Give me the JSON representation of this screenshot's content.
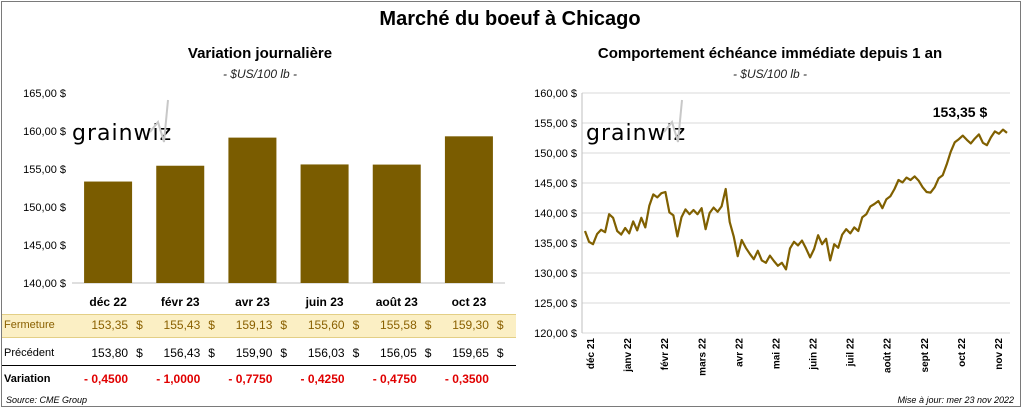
{
  "title": "Marché du boeuf à Chicago",
  "left_panel": {
    "title": "Variation  journalière",
    "subtitle": "- $US/100 lb -",
    "watermark": "grainwiz",
    "table": {
      "currency": "$",
      "rows": [
        {
          "label": "Fermeture",
          "values": [
            "153,35",
            "155,43",
            "159,13",
            "155,60",
            "155,58",
            "159,30"
          ],
          "show_currency": true
        },
        {
          "label": "Précédent",
          "values": [
            "153,80",
            "156,43",
            "159,90",
            "156,03",
            "156,05",
            "159,65"
          ],
          "show_currency": true
        },
        {
          "label": "Variation",
          "values": [
            "- 0,4500",
            "- 1,0000",
            "- 0,7750",
            "- 0,4250",
            "- 0,4750",
            "- 0,3500"
          ],
          "show_currency": false
        }
      ]
    }
  },
  "right_panel": {
    "title": "Comportement  échéance immédiate depuis 1 an",
    "subtitle": "- $US/100 lb -",
    "watermark": "grainwiz",
    "last_value_label": "153,35 $"
  },
  "chart_data": [
    {
      "type": "bar",
      "categories": [
        "déc 22",
        "févr 23",
        "avr 23",
        "juin 23",
        "août 23",
        "oct 23"
      ],
      "values": [
        153.35,
        155.43,
        159.13,
        155.6,
        155.58,
        159.3
      ],
      "ylim": [
        140,
        165
      ],
      "yticks": [
        "140,00 $",
        "145,00 $",
        "150,00 $",
        "155,00 $",
        "160,00 $",
        "165,00 $"
      ],
      "color": "#7a5c00",
      "grid": false
    },
    {
      "type": "line",
      "ylim": [
        120,
        160
      ],
      "yticks": [
        "120,00 $",
        "125,00 $",
        "130,00 $",
        "135,00 $",
        "140,00 $",
        "145,00 $",
        "150,00 $",
        "155,00 $",
        "160,00 $"
      ],
      "xticks": [
        "déc 21",
        "janv 22",
        "févr 22",
        "mars 22",
        "avr 22",
        "mai 22",
        "juin 22",
        "juil 22",
        "août 22",
        "sept 22",
        "oct 22",
        "nov 22"
      ],
      "color": "#806000",
      "grid": true,
      "series": [
        {
          "values": [
            137,
            135.2,
            134.8,
            136.5,
            137.2,
            136.8,
            139.8,
            139.2,
            137,
            136.4,
            137.5,
            136.6,
            138.6,
            137.1,
            139.2,
            137.6,
            141.2,
            143.1,
            142.6,
            143.3,
            143.5,
            140.1,
            139.6,
            136.1,
            139.3,
            140.6,
            139.8,
            140.5,
            139.8,
            140.8,
            137.3,
            140,
            140.9,
            140.2,
            141.1,
            144,
            138.5,
            136.1,
            132.8,
            135.5,
            134.2,
            133.2,
            132.3,
            133.7,
            132.1,
            131.7,
            132.9,
            132,
            131.2,
            131.7,
            130.6,
            134.1,
            135.2,
            134.6,
            135.4,
            134.1,
            132.6,
            134,
            136.3,
            134.8,
            135.7,
            132.1,
            134.8,
            134.2,
            136.4,
            137.3,
            136.6,
            137.6,
            137,
            139.3,
            139.8,
            141.1,
            141.5,
            142,
            140.8,
            142.3,
            142.8,
            144,
            145.5,
            145.1,
            145.9,
            145.5,
            146.1,
            145.4,
            144.3,
            143.5,
            143.4,
            144.3,
            145.8,
            146.3,
            148.1,
            150.2,
            151.8,
            152.3,
            152.9,
            152.2,
            151.6,
            152.4,
            153.1,
            151.7,
            151.3,
            152.6,
            153.6,
            153.2,
            153.9,
            153.35
          ]
        }
      ]
    }
  ],
  "footer": {
    "source": "Source: CME Group",
    "updated": "Mise à jour: mer 23 nov 2022"
  }
}
